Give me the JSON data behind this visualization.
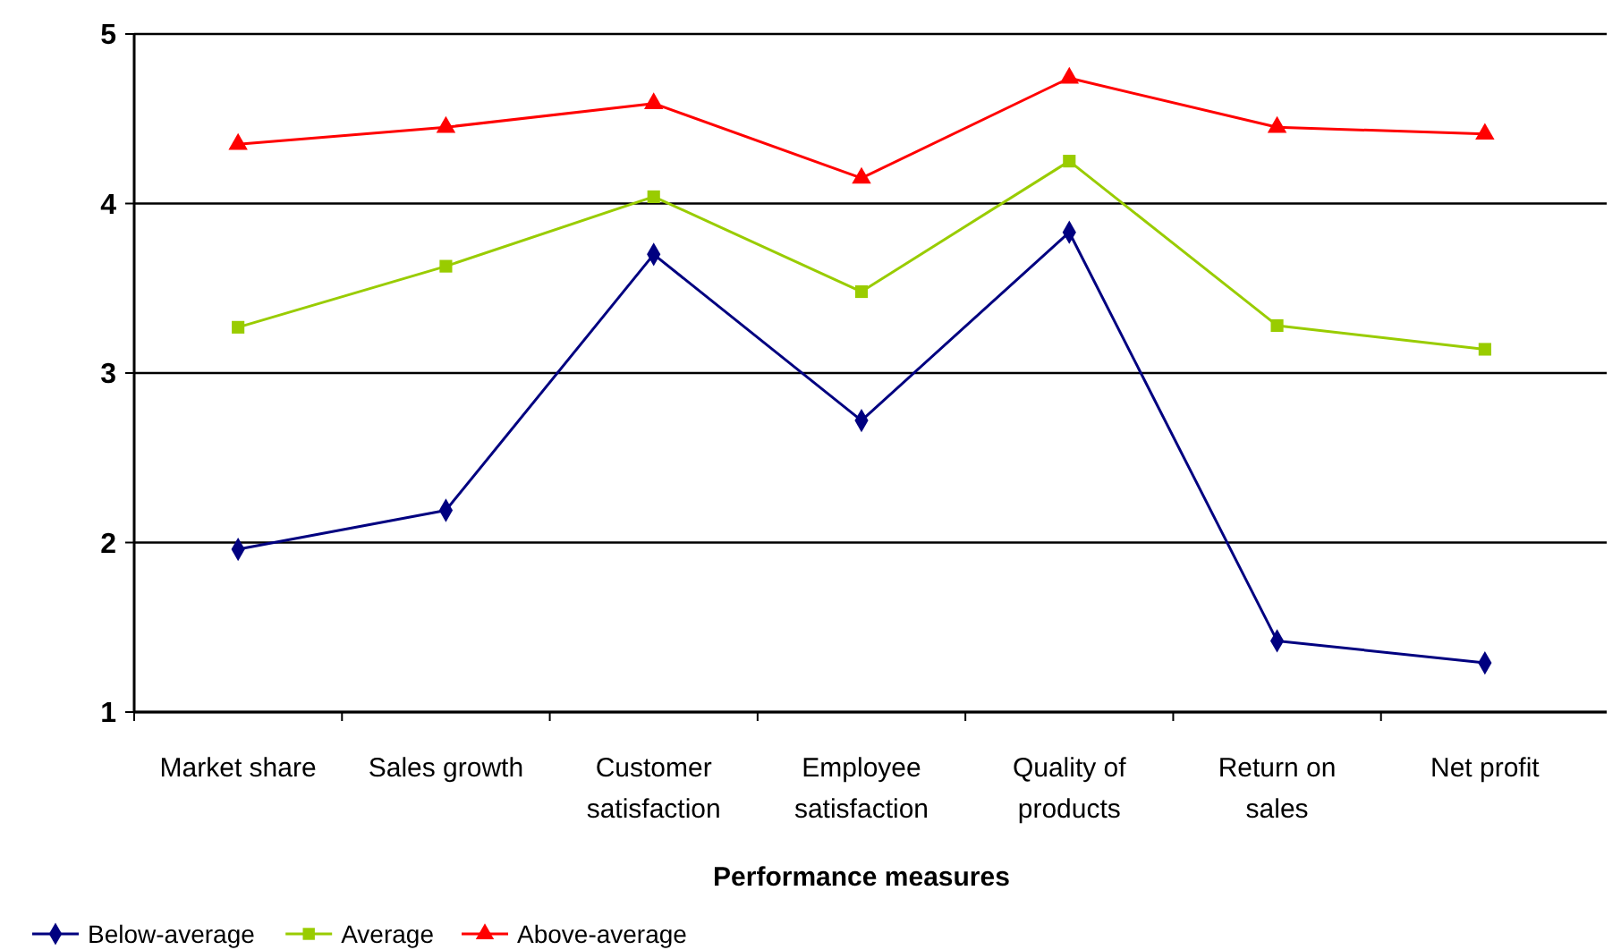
{
  "chart_data": {
    "type": "line",
    "xlabel": "Performance measures",
    "categories": [
      "Market share",
      "Sales growth",
      "Customer satisfaction",
      "Employee satisfaction",
      "Quality of products",
      "Return on sales",
      "Net profit"
    ],
    "series": [
      {
        "name": "Below-average",
        "color": "#000080",
        "marker": "diamond",
        "values": [
          1.96,
          2.19,
          3.7,
          2.72,
          3.83,
          1.42,
          1.29
        ]
      },
      {
        "name": "Average",
        "color": "#99cc00",
        "marker": "square",
        "values": [
          3.27,
          3.63,
          4.04,
          3.48,
          4.25,
          3.28,
          3.14
        ]
      },
      {
        "name": "Above-average",
        "color": "#ff0000",
        "marker": "triangle",
        "values": [
          4.35,
          4.45,
          4.59,
          4.15,
          4.74,
          4.45,
          4.41
        ]
      }
    ],
    "ylim": [
      1,
      5
    ],
    "yticks": [
      1,
      2,
      3,
      4,
      5
    ],
    "grid": "y",
    "legend": "bottom left"
  }
}
